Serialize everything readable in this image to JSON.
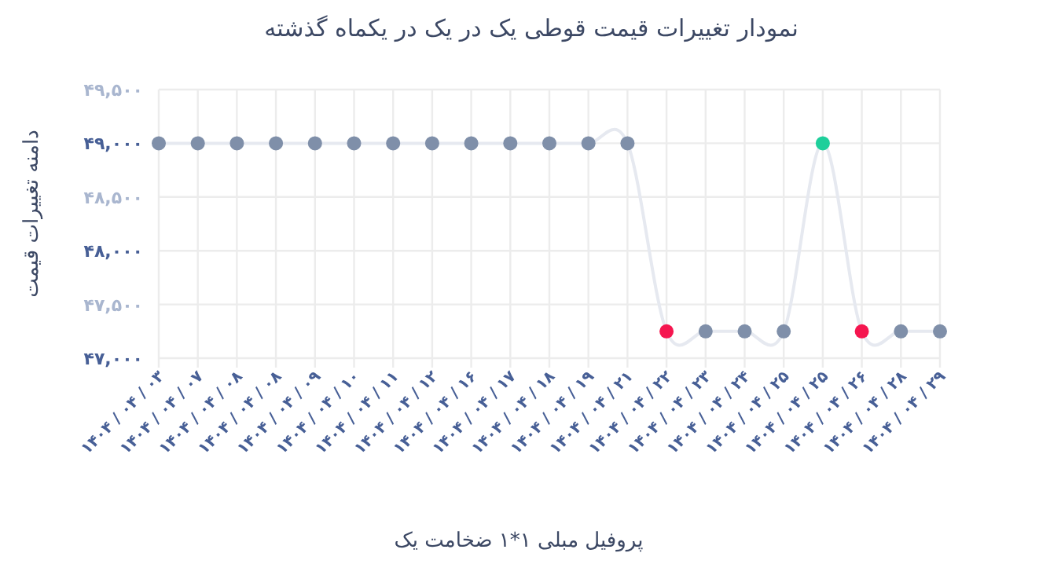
{
  "chart_data": {
    "type": "line",
    "title": "نمودار تغییرات قیمت قوطی یک در یک در یکماه گذشته",
    "xlabel": "پروفیل مبلی ۱*۱ ضخامت یک",
    "ylabel": "دامنه تغییرات قیمت",
    "categories": [
      "۱۴۰۴ / ۰۴ / ۰۳",
      "۱۴۰۴ / ۰۴ / ۰۷",
      "۱۴۰۴ / ۰۴ / ۰۸",
      "۱۴۰۴ / ۰۴ / ۰۸",
      "۱۴۰۴ / ۰۴ / ۰۹",
      "۱۴۰۴ / ۰۴ / ۱۰",
      "۱۴۰۴ / ۰۴ / ۱۱",
      "۱۴۰۴ / ۰۴ / ۱۲",
      "۱۴۰۴ / ۰۴ / ۱۶",
      "۱۴۰۴ / ۰۴ / ۱۷",
      "۱۴۰۴ / ۰۴ / ۱۸",
      "۱۴۰۴ / ۰۴ / ۱۹",
      "۱۴۰۴ / ۰۴ / ۲۱",
      "۱۴۰۴ / ۰۴ / ۲۲",
      "۱۴۰۴ / ۰۴ / ۲۳",
      "۱۴۰۴ / ۰۴ / ۲۴",
      "۱۴۰۴ / ۰۴ / ۲۵",
      "۱۴۰۴ / ۰۴ / ۲۵",
      "۱۴۰۴ / ۰۴ / ۲۶",
      "۱۴۰۴ / ۰۴ / ۲۸",
      "۱۴۰۴ / ۰۴ / ۲۹"
    ],
    "series": [
      {
        "color": "#e6e9f0",
        "values": [
          49000,
          49000,
          49000,
          49000,
          49000,
          49000,
          49000,
          49000,
          49000,
          49000,
          49000,
          49000,
          49000,
          47250,
          47250,
          47250,
          47250,
          49000,
          47250,
          47250,
          47250
        ],
        "colors": [
          "#7f8fa9",
          "#7f8fa9",
          "#7f8fa9",
          "#7f8fa9",
          "#7f8fa9",
          "#7f8fa9",
          "#7f8fa9",
          "#7f8fa9",
          "#7f8fa9",
          "#7f8fa9",
          "#7f8fa9",
          "#7f8fa9",
          "#7f8fa9",
          "#f5164f",
          "#7f8fa9",
          "#7f8fa9",
          "#7f8fa9",
          "#1ecf9b",
          "#f5164f",
          "#7f8fa9",
          "#7f8fa9"
        ]
      }
    ],
    "ylim": [
      47000,
      49500
    ],
    "yticks": [
      {
        "value": 47000,
        "label": "۴۷,۰۰۰"
      },
      {
        "value": 47500,
        "label": "۴۷,۵۰۰"
      },
      {
        "value": 48000,
        "label": "۴۸,۰۰۰"
      },
      {
        "value": 48500,
        "label": "۴۸,۵۰۰"
      },
      {
        "value": 49000,
        "label": "۴۹,۰۰۰"
      },
      {
        "value": 49500,
        "label": "۴۹,۵۰۰"
      }
    ],
    "grid": true,
    "marker": "circle",
    "line_style": "solid"
  }
}
